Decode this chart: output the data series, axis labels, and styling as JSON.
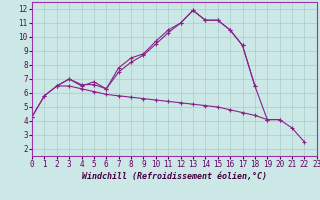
{
  "xlabel": "Windchill (Refroidissement éolien,°C)",
  "bg_color": "#cce8e6",
  "grid_color": "#aaccca",
  "line_color": "#882288",
  "x_all": [
    0,
    1,
    2,
    3,
    4,
    5,
    6,
    7,
    8,
    9,
    10,
    11,
    12,
    13,
    14,
    15,
    16,
    17,
    18,
    19,
    20,
    21,
    22,
    23
  ],
  "line1_y": [
    4.3,
    5.8,
    6.5,
    7.0,
    6.6,
    6.6,
    6.3,
    7.8,
    8.5,
    8.8,
    9.7,
    10.5,
    11.0,
    11.9,
    11.2,
    11.2,
    10.5,
    9.4,
    6.5,
    null,
    null,
    null,
    null,
    null
  ],
  "line2_y": [
    null,
    null,
    6.5,
    7.0,
    6.5,
    6.8,
    6.3,
    7.5,
    8.2,
    8.7,
    9.5,
    10.3,
    11.0,
    11.9,
    11.2,
    11.2,
    10.5,
    9.4,
    6.5,
    4.1,
    4.1,
    null,
    null,
    null
  ],
  "line3_y": [
    4.3,
    5.8,
    6.5,
    6.5,
    6.3,
    6.1,
    5.9,
    5.8,
    5.7,
    5.6,
    5.5,
    5.4,
    5.3,
    5.2,
    5.1,
    5.0,
    4.8,
    4.6,
    4.4,
    4.1,
    4.1,
    3.5,
    2.5,
    null
  ],
  "xlim": [
    0,
    23
  ],
  "ylim": [
    1.5,
    12.5
  ],
  "yticks": [
    2,
    3,
    4,
    5,
    6,
    7,
    8,
    9,
    10,
    11,
    12
  ],
  "xticks": [
    0,
    1,
    2,
    3,
    4,
    5,
    6,
    7,
    8,
    9,
    10,
    11,
    12,
    13,
    14,
    15,
    16,
    17,
    18,
    19,
    20,
    21,
    22,
    23
  ],
  "tick_fontsize": 5.5,
  "xlabel_fontsize": 6.0
}
